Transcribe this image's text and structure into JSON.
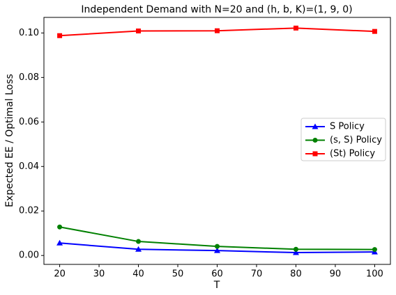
{
  "chart_data": {
    "type": "line",
    "title": "Independent Demand with N=20 and (h, b, K)=(1, 9, 0)",
    "x_label": "T",
    "y_label": "Expected EE / Optimal Loss",
    "x": [
      20,
      40,
      60,
      80,
      100
    ],
    "series": [
      {
        "name": "S Policy",
        "color": "#0000ff",
        "marker": "triangle",
        "values": [
          0.0056,
          0.0028,
          0.0022,
          0.0013,
          0.0016
        ]
      },
      {
        "name": "(s, S) Policy",
        "color": "#008000",
        "marker": "circle",
        "values": [
          0.0128,
          0.0063,
          0.0041,
          0.0028,
          0.0027
        ]
      },
      {
        "name": "(St) Policy",
        "color": "#ff0000",
        "marker": "square",
        "values": [
          0.0988,
          0.1009,
          0.101,
          0.1022,
          0.1007
        ]
      }
    ],
    "xlim": [
      16,
      104
    ],
    "ylim": [
      -0.004,
      0.107
    ],
    "xticks": [
      20,
      30,
      40,
      50,
      60,
      70,
      80,
      90,
      100
    ],
    "yticks": [
      {
        "value": 0,
        "label": "0.00"
      },
      {
        "value": 0.02,
        "label": "0.02"
      },
      {
        "value": 0.04,
        "label": "0.04"
      },
      {
        "value": 0.06,
        "label": "0.06"
      },
      {
        "value": 0.08,
        "label": "0.08"
      },
      {
        "value": 0.1,
        "label": "0.10"
      }
    ],
    "legend": "right"
  }
}
